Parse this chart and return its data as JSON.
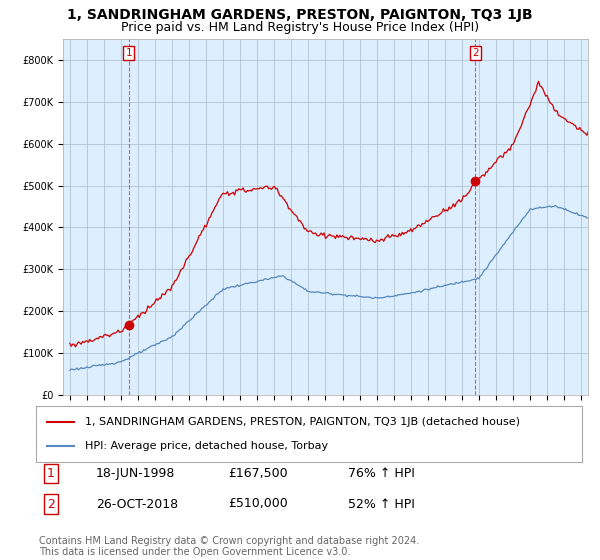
{
  "title": "1, SANDRINGHAM GARDENS, PRESTON, PAIGNTON, TQ3 1JB",
  "subtitle": "Price paid vs. HM Land Registry's House Price Index (HPI)",
  "ylim": [
    0,
    850000
  ],
  "yticks": [
    0,
    100000,
    200000,
    300000,
    400000,
    500000,
    600000,
    700000,
    800000
  ],
  "ytick_labels": [
    "£0",
    "£100K",
    "£200K",
    "£300K",
    "£400K",
    "£500K",
    "£600K",
    "£700K",
    "£800K"
  ],
  "sale1_year": 1998.46,
  "sale1_price": 167500,
  "sale1_date": "18-JUN-1998",
  "sale1_hpi_text": "76% ↑ HPI",
  "sale2_year": 2018.79,
  "sale2_price": 510000,
  "sale2_date": "26-OCT-2018",
  "sale2_hpi_text": "52% ↑ HPI",
  "legend_label_red": "1, SANDRINGHAM GARDENS, PRESTON, PAIGNTON, TQ3 1JB (detached house)",
  "legend_label_blue": "HPI: Average price, detached house, Torbay",
  "footer": "Contains HM Land Registry data © Crown copyright and database right 2024.\nThis data is licensed under the Open Government Licence v3.0.",
  "red_color": "#cc0000",
  "blue_color": "#5588bb",
  "plot_bg": "#ddeeff",
  "bg_color": "#ffffff",
  "grid_color": "#aabbcc",
  "title_fontsize": 10,
  "subtitle_fontsize": 9,
  "axis_fontsize": 8,
  "tick_fontsize": 7,
  "legend_fontsize": 8,
  "table_fontsize": 9,
  "note_fontsize": 7
}
